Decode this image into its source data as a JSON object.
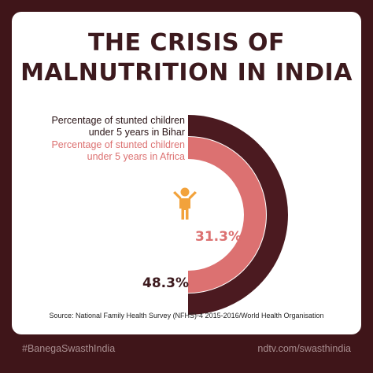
{
  "title_line1": "THE CRISIS OF",
  "title_line2": "MALNUTRITION IN INDIA",
  "colors": {
    "background": "#3f1519",
    "card": "#ffffff",
    "bihar": "#4b1a20",
    "africa": "#dc7171",
    "title": "#3d1a1e",
    "icon": "#f2a23b"
  },
  "icon": "child-icon",
  "chart_data": {
    "type": "radial-bar",
    "series": [
      {
        "name": "Percentage of stunted children under 5 years in Bihar",
        "value": 48.3,
        "label": "48.3%"
      },
      {
        "name": "Percentage of stunted children under 5 years in Africa",
        "value": 31.3,
        "label": "31.3%"
      }
    ],
    "legend": [
      {
        "line1": "Percentage of stunted children",
        "line2": "under 5 years in Bihar"
      },
      {
        "line1": "Percentage of stunted children",
        "line2": "under 5 years in Africa"
      }
    ],
    "source": "Source: National Family Health Survey (NFHS)-4 2015-2016/World Health Organisation"
  },
  "footer": {
    "hashtag": "#BanegaSwasthIndia",
    "url": "ndtv.com/swasthindia"
  }
}
